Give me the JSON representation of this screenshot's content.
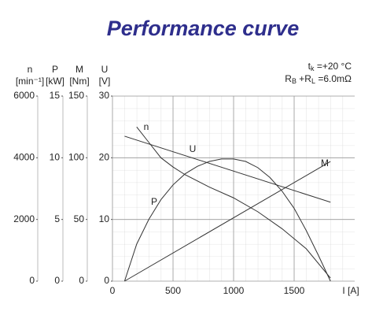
{
  "chart_data": {
    "type": "line",
    "title": "Performance curve",
    "annotations": [
      [
        "t",
        "k",
        " =+20  °C"
      ],
      [
        "R",
        "B",
        " +R",
        "L",
        " =6.0mΩ"
      ]
    ],
    "x_label": "I [A]",
    "xlim": [
      0,
      2000
    ],
    "xticks": [
      0,
      500,
      1000,
      1500
    ],
    "axes": [
      {
        "name": "n",
        "unit": "[min⁻¹]",
        "ylim": [
          0,
          6000
        ],
        "yticks": [
          0,
          2000,
          4000,
          6000
        ]
      },
      {
        "name": "P",
        "unit": "[kW]",
        "ylim": [
          0,
          15
        ],
        "yticks": [
          0,
          5,
          10,
          15
        ]
      },
      {
        "name": "M",
        "unit": "[Nm]",
        "ylim": [
          0,
          150
        ],
        "yticks": [
          0,
          50,
          100,
          150
        ]
      },
      {
        "name": "U",
        "unit": "[V]",
        "ylim": [
          0,
          30
        ],
        "yticks": [
          0,
          10,
          20,
          30
        ]
      }
    ],
    "grid": true,
    "series": [
      {
        "name": "n",
        "axis": "n",
        "color": "#333333",
        "x": [
          200,
          300,
          400,
          500,
          600,
          800,
          1000,
          1200,
          1400,
          1600,
          1800
        ],
        "values": [
          5000,
          4500,
          4000,
          3700,
          3450,
          3050,
          2700,
          2250,
          1700,
          1050,
          100
        ]
      },
      {
        "name": "U",
        "axis": "U",
        "color": "#333333",
        "x": [
          100,
          1800
        ],
        "values": [
          23.5,
          12.8
        ]
      },
      {
        "name": "P",
        "axis": "P",
        "color": "#333333",
        "x": [
          100,
          200,
          300,
          400,
          500,
          600,
          700,
          800,
          900,
          1000,
          1100,
          1200,
          1300,
          1400,
          1500,
          1600,
          1700,
          1800
        ],
        "values": [
          0,
          3,
          5,
          6.6,
          7.8,
          8.7,
          9.3,
          9.7,
          9.9,
          9.9,
          9.7,
          9.2,
          8.4,
          7.3,
          5.9,
          4.1,
          2.1,
          0
        ]
      },
      {
        "name": "M",
        "axis": "M",
        "color": "#333333",
        "x": [
          100,
          1800
        ],
        "values": [
          0,
          97
        ]
      }
    ]
  }
}
